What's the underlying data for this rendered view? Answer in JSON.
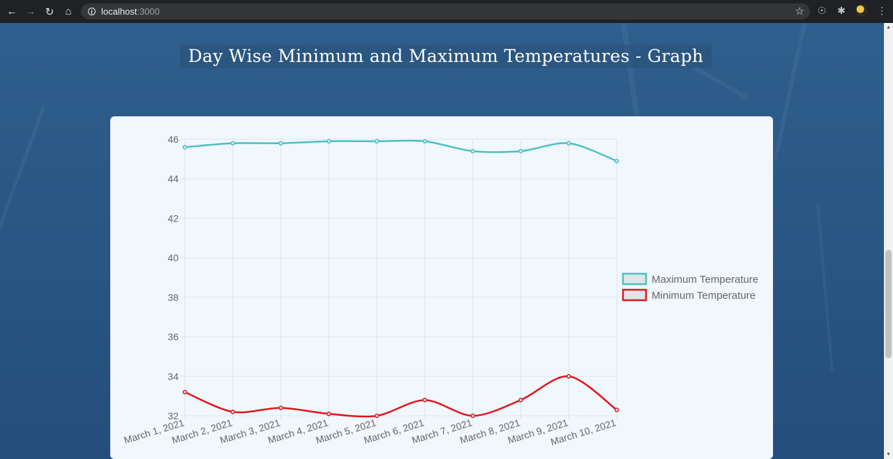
{
  "browser": {
    "url_host": "localhost",
    "url_port": ":3000"
  },
  "page": {
    "title": "Day Wise Minimum and Maximum Temperatures - Graph"
  },
  "colors": {
    "max_series": "#4bc0c0",
    "min_series": "#e3141a",
    "card_bg": "#f0f7fd",
    "grid": "#dde6ee"
  },
  "chart_data": {
    "type": "line",
    "categories": [
      "March 1, 2021",
      "March 2, 2021",
      "March 3, 2021",
      "March 4, 2021",
      "March 5, 2021",
      "March 6, 2021",
      "March 7, 2021",
      "March 8, 2021",
      "March 9, 2021",
      "March 10, 2021"
    ],
    "series": [
      {
        "name": "Maximum Temperature",
        "color": "#4bc0c0",
        "values": [
          45.6,
          45.8,
          45.8,
          45.9,
          45.9,
          45.9,
          45.4,
          45.4,
          45.8,
          44.9
        ]
      },
      {
        "name": "Minimum Temperature",
        "color": "#e3141a",
        "values": [
          33.2,
          32.2,
          32.4,
          32.1,
          32.0,
          32.8,
          32.0,
          32.8,
          34.0,
          32.3
        ]
      }
    ],
    "ylim": [
      32,
      46
    ],
    "yticks": [
      46,
      44,
      42,
      40,
      38,
      36,
      34,
      32
    ],
    "legend_position": "right",
    "grid": true
  }
}
